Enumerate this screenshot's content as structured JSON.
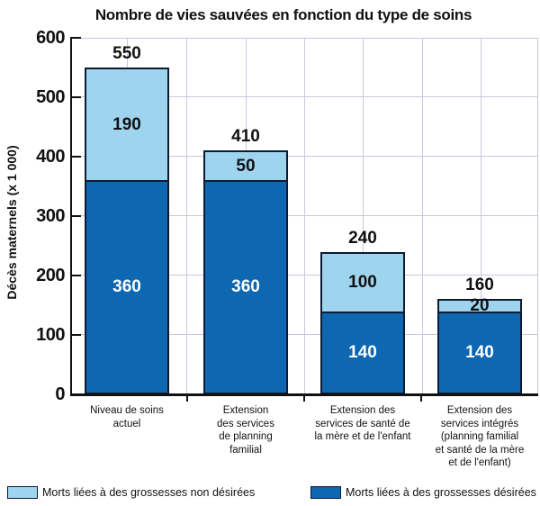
{
  "title": "Nombre de vies sauvées en fonction du type de soins",
  "y_axis": {
    "label": "Décès maternels (x 1 000)",
    "ticks": [
      "600",
      "500",
      "400",
      "300",
      "200",
      "100",
      "0"
    ]
  },
  "legend": [
    {
      "label": "Morts liées à des grossesses non désirées",
      "color": "#9fd4ef"
    },
    {
      "label": "Morts liées à des grossesses désirées",
      "color": "#0d67b1"
    }
  ],
  "colors": {
    "dark_blue": "#0d67b1",
    "light_blue": "#9fd4ef",
    "bar_border": "#0d1b33",
    "grid": "#c7cada",
    "text": "#111111"
  },
  "chart_data": {
    "type": "bar",
    "stacked": true,
    "title": "Nombre de vies sauvées en fonction du type de soins",
    "ylabel": "Décès maternels (x 1 000)",
    "ylim": [
      0,
      600
    ],
    "grid": true,
    "legend_position": "bottom",
    "categories": [
      "Niveau de soins\nactuel",
      "Extension\ndes services\nde planning\nfamilial",
      "Extension des\nservices de santé de\nla mère et de l'enfant",
      "Extension des\nservices intégrés\n(planning familial\net santé de la mère\net de l'enfant)"
    ],
    "series": [
      {
        "name": "Morts liées à des grossesses désirées",
        "color": "#0d67b1",
        "values": [
          360,
          360,
          140,
          140
        ]
      },
      {
        "name": "Morts liées à des grossesses non désirées",
        "color": "#9fd4ef",
        "values": [
          190,
          50,
          100,
          20
        ]
      }
    ],
    "totals": [
      550,
      410,
      240,
      160
    ]
  }
}
